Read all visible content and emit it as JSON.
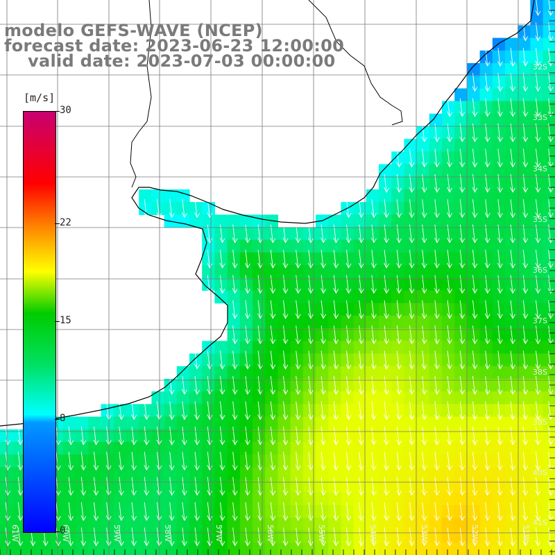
{
  "header": {
    "line1": "modelo GEFS-WAVE (NCEP)",
    "line2": "forecast date: 2023-06-23 12:00:00",
    "line3": "valid date: 2023-07-03 00:00:00"
  },
  "colorbar": {
    "unit": "[m/s]",
    "ticks": [
      {
        "label": "30",
        "value": 30
      },
      {
        "label": "22",
        "value": 22
      },
      {
        "label": "15",
        "value": 15
      },
      {
        "label": "8",
        "value": 8
      },
      {
        "label": "0",
        "value": 0
      }
    ],
    "range": [
      0,
      30
    ],
    "colors": [
      "#0000ff",
      "#00ffff",
      "#00cc00",
      "#ffff00",
      "#ff8000",
      "#ff0000",
      "#c80070"
    ]
  },
  "axes": {
    "lon_labels": [
      "61W",
      "60W",
      "59W",
      "58W",
      "57W",
      "56W",
      "55W",
      "54W",
      "53W",
      "52W",
      "51W"
    ],
    "lat_labels": [
      "32S",
      "33S",
      "34S",
      "35S",
      "36S",
      "37S",
      "38S",
      "39S",
      "40S",
      "41S"
    ]
  },
  "field": {
    "name": "wind speed",
    "wind_direction": "from north (arrows pointing south)"
  }
}
